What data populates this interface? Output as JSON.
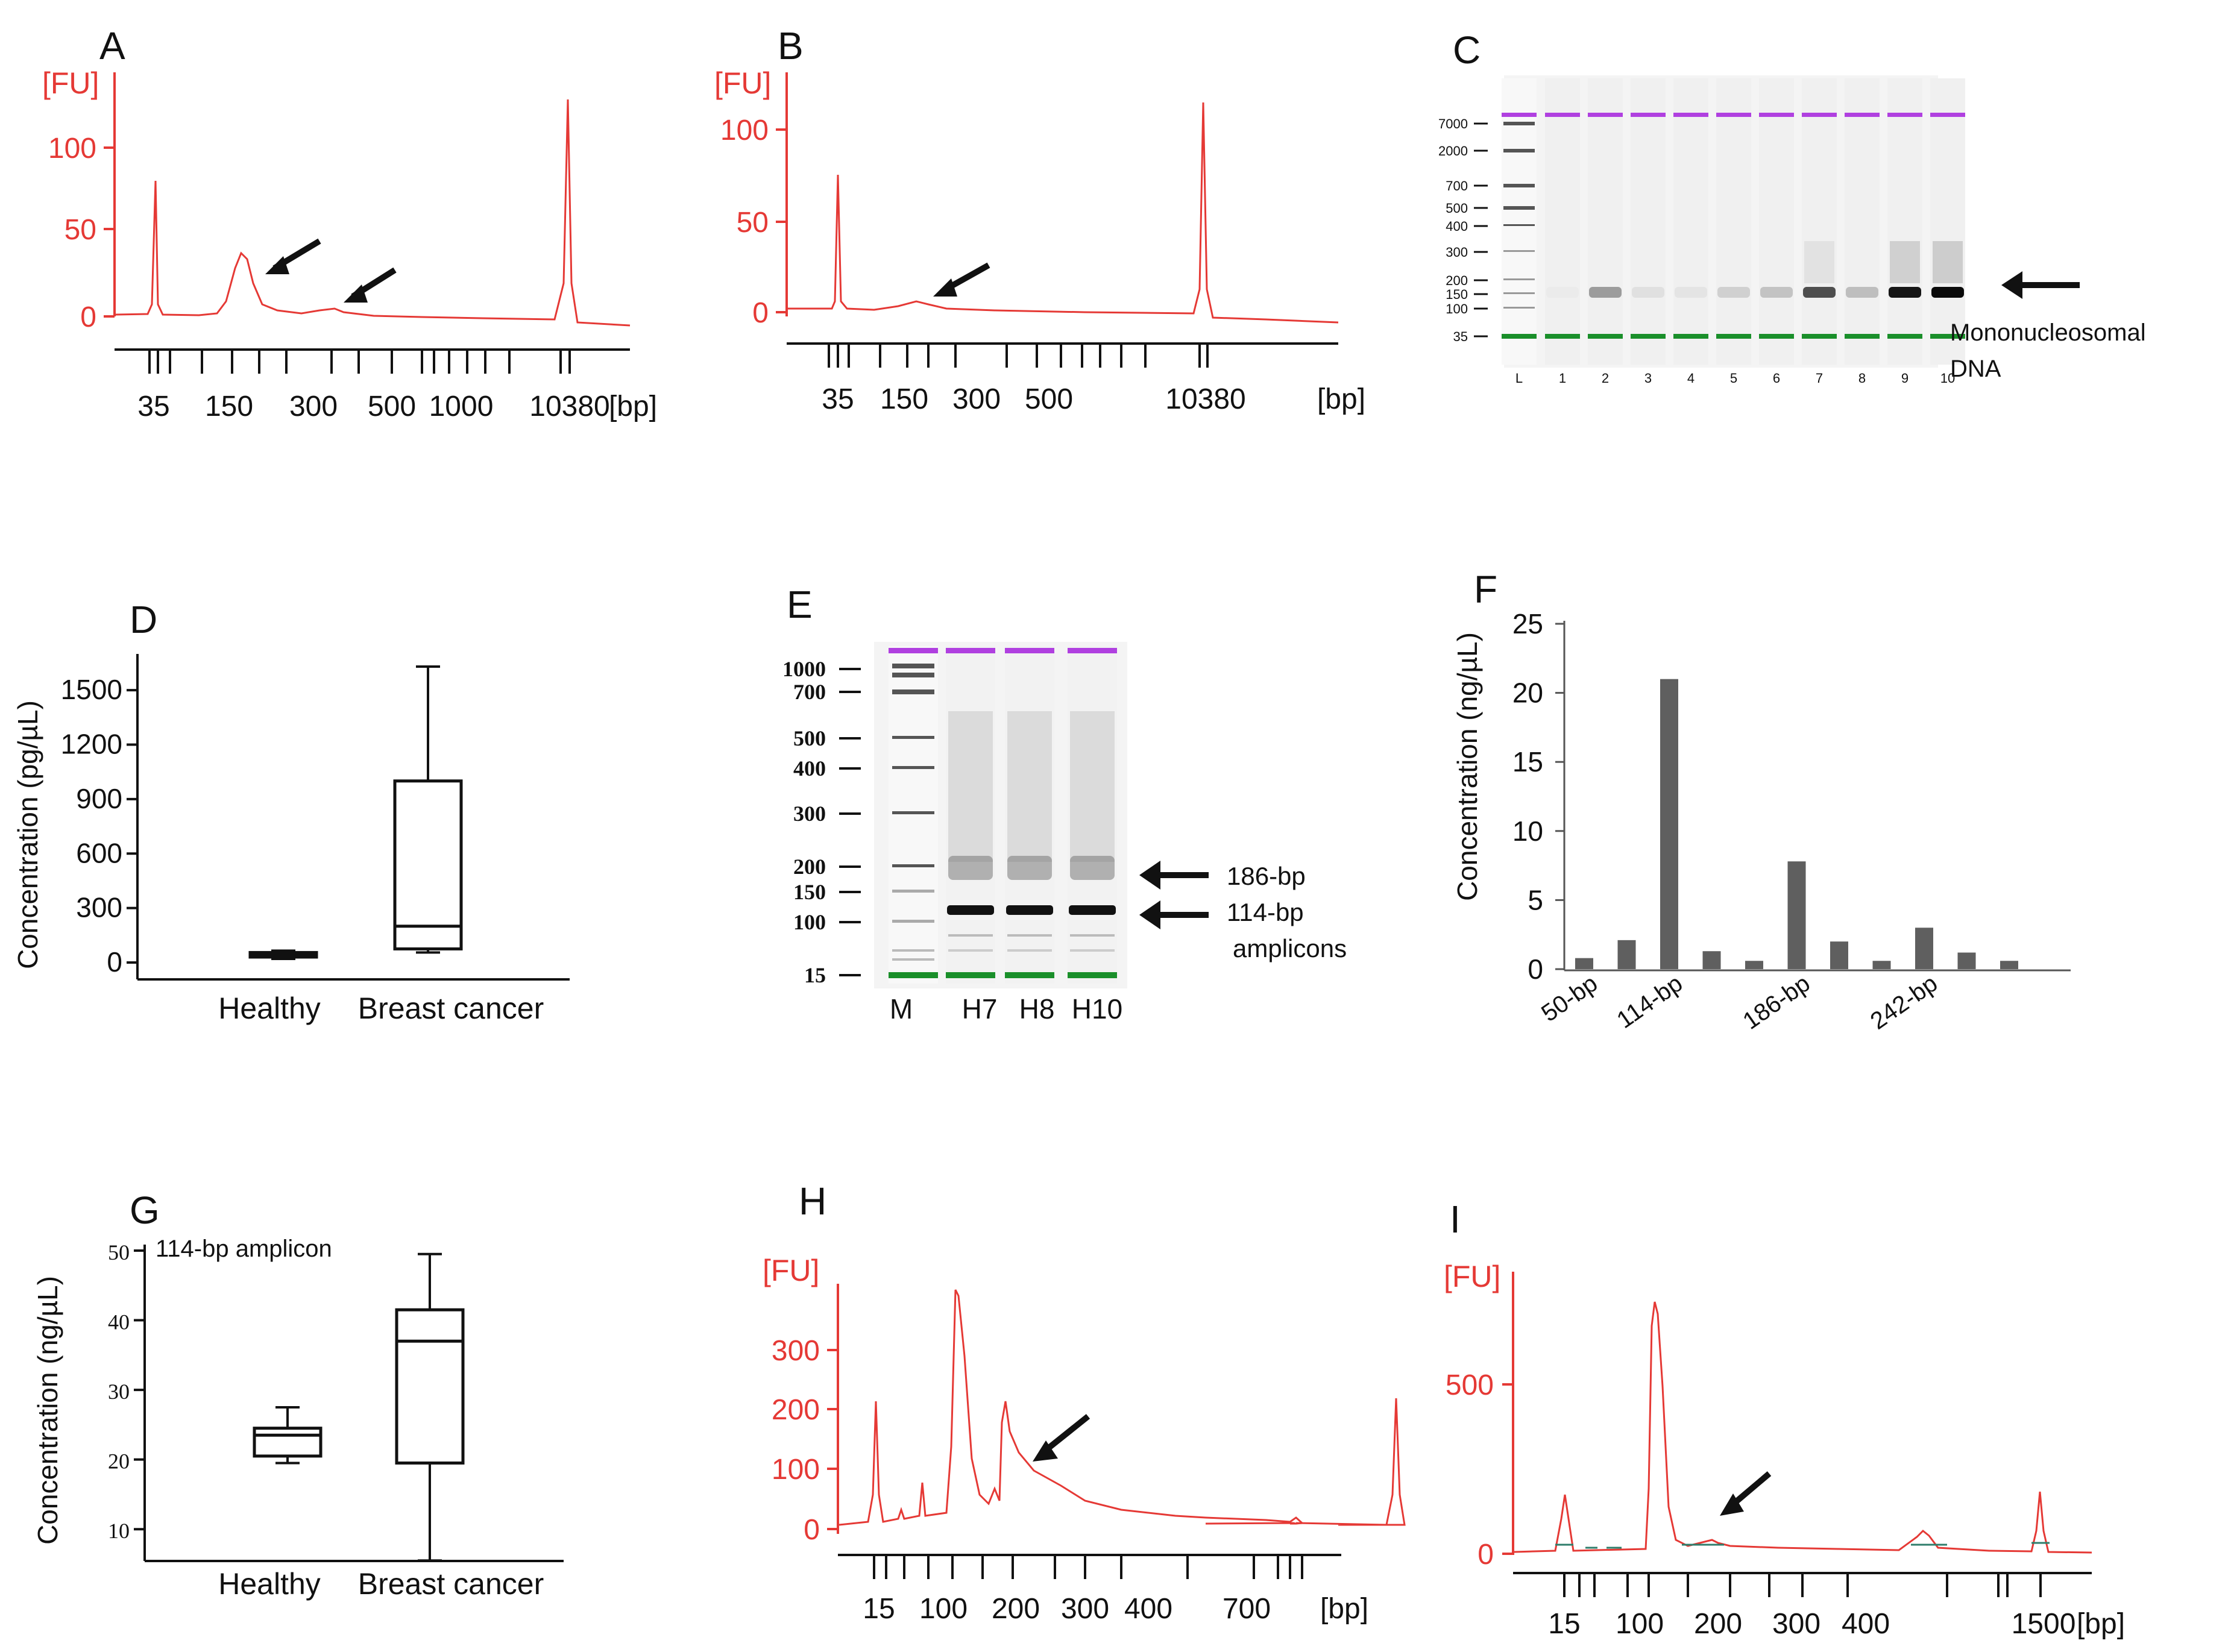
{
  "panels": {
    "A": {
      "label": "A",
      "unit": "[FU]",
      "y_ticks": [
        "100",
        "50",
        "0"
      ],
      "x_ticks": [
        "35",
        "150",
        "300",
        "500",
        "1000",
        "10380"
      ],
      "x_unit": "[bp]"
    },
    "B": {
      "label": "B",
      "unit": "[FU]",
      "y_ticks": [
        "100",
        "50",
        "0"
      ],
      "x_ticks": [
        "35",
        "150",
        "300",
        "500",
        "10380"
      ],
      "x_unit": "[bp]"
    },
    "C": {
      "label": "C",
      "ladder": [
        "7000",
        "2000",
        "700",
        "500",
        "400",
        "300",
        "200",
        "150",
        "100",
        "35"
      ],
      "lanes": [
        "L",
        "1",
        "2",
        "3",
        "4",
        "5",
        "6",
        "7",
        "8",
        "9",
        "10"
      ],
      "annotation": [
        "Mononucleosomal",
        "DNA"
      ],
      "band_intensity": [
        0,
        0.35,
        0.05,
        0.03,
        0.12,
        0.18,
        0.7,
        0.2,
        0.95,
        1.0
      ]
    },
    "D": {
      "label": "D"
    },
    "E": {
      "label": "E",
      "ladder": [
        "1000",
        "700",
        "500",
        "400",
        "300",
        "200",
        "150",
        "100",
        "15"
      ],
      "lanes": [
        "M",
        "H7",
        "H8",
        "H10"
      ],
      "arrow_labels": [
        "186-bp",
        "114-bp",
        "amplicons"
      ]
    },
    "F": {
      "label": "F"
    },
    "G": {
      "label": "G",
      "inset": "114-bp amplicon"
    },
    "H": {
      "label": "H",
      "unit": "[FU]",
      "y_ticks": [
        "300",
        "200",
        "100",
        "0"
      ],
      "x_ticks": [
        "15",
        "100",
        "200",
        "300",
        "400",
        "700"
      ],
      "x_unit": "[bp]"
    },
    "I": {
      "label": "I",
      "unit": "[FU]",
      "y_ticks": [
        "500",
        "0"
      ],
      "x_ticks": [
        "15",
        "100",
        "200",
        "300",
        "400",
        "1500"
      ],
      "x_unit": "[bp]"
    }
  },
  "chart_data": [
    {
      "panel": "D",
      "type": "box",
      "ylabel": "Concentration (pg/µL)",
      "ylim": [
        0,
        1650
      ],
      "y_ticks": [
        0,
        300,
        600,
        900,
        1200,
        1500
      ],
      "categories": [
        "Healthy",
        "Breast cancer"
      ],
      "boxes": [
        {
          "min": 20,
          "q1": 30,
          "median": 40,
          "q3": 55,
          "max": 65
        },
        {
          "min": 55,
          "q1": 75,
          "median": 200,
          "q3": 1000,
          "max": 1630
        }
      ]
    },
    {
      "panel": "F",
      "type": "bar",
      "ylabel": "Concentration (ng/µL)",
      "ylim": [
        0,
        25
      ],
      "y_ticks": [
        0,
        5,
        10,
        15,
        20,
        25
      ],
      "categories": [
        "50-bp",
        "",
        "114-bp",
        "",
        "",
        "186-bp",
        "",
        "",
        "242-bp",
        "",
        ""
      ],
      "values": [
        0.8,
        2.1,
        21,
        1.3,
        0.6,
        7.8,
        2.0,
        0.6,
        3.0,
        1.2,
        0.6
      ]
    },
    {
      "panel": "G",
      "type": "box",
      "ylabel": "Concentration (ng/µL)",
      "ylim": [
        5,
        50
      ],
      "y_ticks": [
        10,
        20,
        30,
        40,
        50
      ],
      "categories": [
        "Healthy",
        "Breast cancer"
      ],
      "boxes": [
        {
          "min": 19.5,
          "q1": 20.5,
          "median": 23.5,
          "q3": 24.5,
          "max": 27.5
        },
        {
          "min": 5.5,
          "q1": 19.5,
          "median": 37,
          "q3": 41.5,
          "max": 49.5
        }
      ]
    }
  ]
}
